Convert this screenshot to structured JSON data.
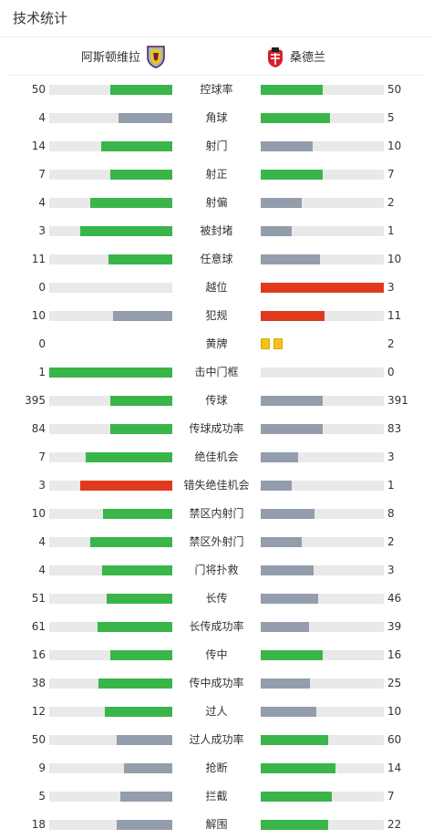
{
  "title": "技术统计",
  "home_team": {
    "name": "阿斯顿维拉",
    "logo_icon": "aston-villa-crest-icon"
  },
  "away_team": {
    "name": "桑德兰",
    "logo_icon": "sunderland-crest-icon"
  },
  "colors": {
    "win": "#3ab54a",
    "lose": "#949dab",
    "alert": "#e03a1e",
    "track": "#e9e9e9",
    "card": "#f3c316"
  },
  "stats": [
    {
      "label": "控球率",
      "home": "50",
      "away": "50",
      "home_pct": 0.5,
      "away_pct": 0.5,
      "home_color": "win",
      "away_color": "win"
    },
    {
      "label": "角球",
      "home": "4",
      "away": "5",
      "home_pct": 0.44,
      "away_pct": 0.56,
      "home_color": "lose",
      "away_color": "win"
    },
    {
      "label": "射门",
      "home": "14",
      "away": "10",
      "home_pct": 0.58,
      "away_pct": 0.42,
      "home_color": "win",
      "away_color": "lose"
    },
    {
      "label": "射正",
      "home": "7",
      "away": "7",
      "home_pct": 0.5,
      "away_pct": 0.5,
      "home_color": "win",
      "away_color": "win"
    },
    {
      "label": "射偏",
      "home": "4",
      "away": "2",
      "home_pct": 0.67,
      "away_pct": 0.33,
      "home_color": "win",
      "away_color": "lose"
    },
    {
      "label": "被封堵",
      "home": "3",
      "away": "1",
      "home_pct": 0.75,
      "away_pct": 0.25,
      "home_color": "win",
      "away_color": "lose"
    },
    {
      "label": "任意球",
      "home": "11",
      "away": "10",
      "home_pct": 0.52,
      "away_pct": 0.48,
      "home_color": "win",
      "away_color": "lose"
    },
    {
      "label": "越位",
      "home": "0",
      "away": "3",
      "home_pct": 0,
      "away_pct": 1.0,
      "home_color": "lose",
      "away_color": "alert"
    },
    {
      "label": "犯规",
      "home": "10",
      "away": "11",
      "home_pct": 0.48,
      "away_pct": 0.52,
      "home_color": "lose",
      "away_color": "alert"
    },
    {
      "label": "黄牌",
      "home": "0",
      "away": "2",
      "cards": true,
      "home_cards": 0,
      "away_cards": 2
    },
    {
      "label": "击中门框",
      "home": "1",
      "away": "0",
      "home_pct": 1.0,
      "away_pct": 0,
      "home_color": "win",
      "away_color": "lose"
    },
    {
      "label": "传球",
      "home": "395",
      "away": "391",
      "home_pct": 0.5,
      "away_pct": 0.5,
      "home_color": "win",
      "away_color": "lose"
    },
    {
      "label": "传球成功率",
      "home": "84",
      "away": "83",
      "home_pct": 0.5,
      "away_pct": 0.5,
      "home_color": "win",
      "away_color": "lose"
    },
    {
      "label": "绝佳机会",
      "home": "7",
      "away": "3",
      "home_pct": 0.7,
      "away_pct": 0.3,
      "home_color": "win",
      "away_color": "lose"
    },
    {
      "label": "错失绝佳机会",
      "home": "3",
      "away": "1",
      "home_pct": 0.75,
      "away_pct": 0.25,
      "home_color": "alert",
      "away_color": "lose"
    },
    {
      "label": "禁区内射门",
      "home": "10",
      "away": "8",
      "home_pct": 0.56,
      "away_pct": 0.44,
      "home_color": "win",
      "away_color": "lose"
    },
    {
      "label": "禁区外射门",
      "home": "4",
      "away": "2",
      "home_pct": 0.67,
      "away_pct": 0.33,
      "home_color": "win",
      "away_color": "lose"
    },
    {
      "label": "门将扑救",
      "home": "4",
      "away": "3",
      "home_pct": 0.57,
      "away_pct": 0.43,
      "home_color": "win",
      "away_color": "lose"
    },
    {
      "label": "长传",
      "home": "51",
      "away": "46",
      "home_pct": 0.53,
      "away_pct": 0.47,
      "home_color": "win",
      "away_color": "lose"
    },
    {
      "label": "长传成功率",
      "home": "61",
      "away": "39",
      "home_pct": 0.61,
      "away_pct": 0.39,
      "home_color": "win",
      "away_color": "lose"
    },
    {
      "label": "传中",
      "home": "16",
      "away": "16",
      "home_pct": 0.5,
      "away_pct": 0.5,
      "home_color": "win",
      "away_color": "win"
    },
    {
      "label": "传中成功率",
      "home": "38",
      "away": "25",
      "home_pct": 0.6,
      "away_pct": 0.4,
      "home_color": "win",
      "away_color": "lose"
    },
    {
      "label": "过人",
      "home": "12",
      "away": "10",
      "home_pct": 0.55,
      "away_pct": 0.45,
      "home_color": "win",
      "away_color": "lose"
    },
    {
      "label": "过人成功率",
      "home": "50",
      "away": "60",
      "home_pct": 0.45,
      "away_pct": 0.55,
      "home_color": "lose",
      "away_color": "win"
    },
    {
      "label": "抢断",
      "home": "9",
      "away": "14",
      "home_pct": 0.39,
      "away_pct": 0.61,
      "home_color": "lose",
      "away_color": "win"
    },
    {
      "label": "拦截",
      "home": "5",
      "away": "7",
      "home_pct": 0.42,
      "away_pct": 0.58,
      "home_color": "lose",
      "away_color": "win"
    },
    {
      "label": "解围",
      "home": "18",
      "away": "22",
      "home_pct": 0.45,
      "away_pct": 0.55,
      "home_color": "lose",
      "away_color": "win"
    }
  ]
}
